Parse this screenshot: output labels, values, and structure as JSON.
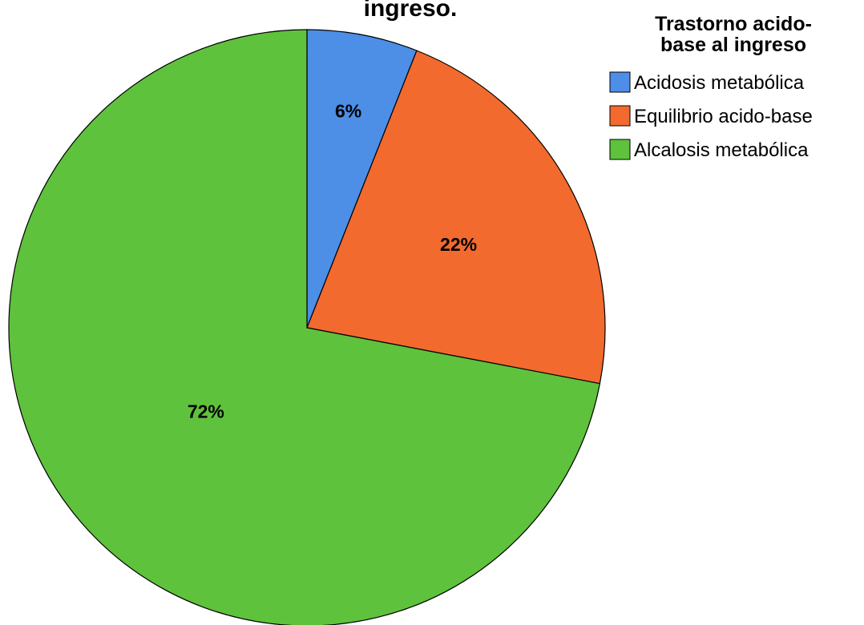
{
  "chart_data": {
    "type": "pie",
    "title_fragment": "ingreso.",
    "legend": {
      "title_lines": [
        "Trastorno acido-",
        "base al ingreso"
      ],
      "placement": "top-right"
    },
    "categories": [
      "Acidosis metabólica",
      "Equilibrio acido-base",
      "Alcalosis metabólica"
    ],
    "values": [
      6,
      22,
      72
    ],
    "labels": [
      "6%",
      "22%",
      "72%"
    ],
    "colors": [
      "#4d8ee6",
      "#f26a2e",
      "#5ec23c"
    ],
    "start_angle_deg": 0,
    "direction": "clockwise"
  }
}
